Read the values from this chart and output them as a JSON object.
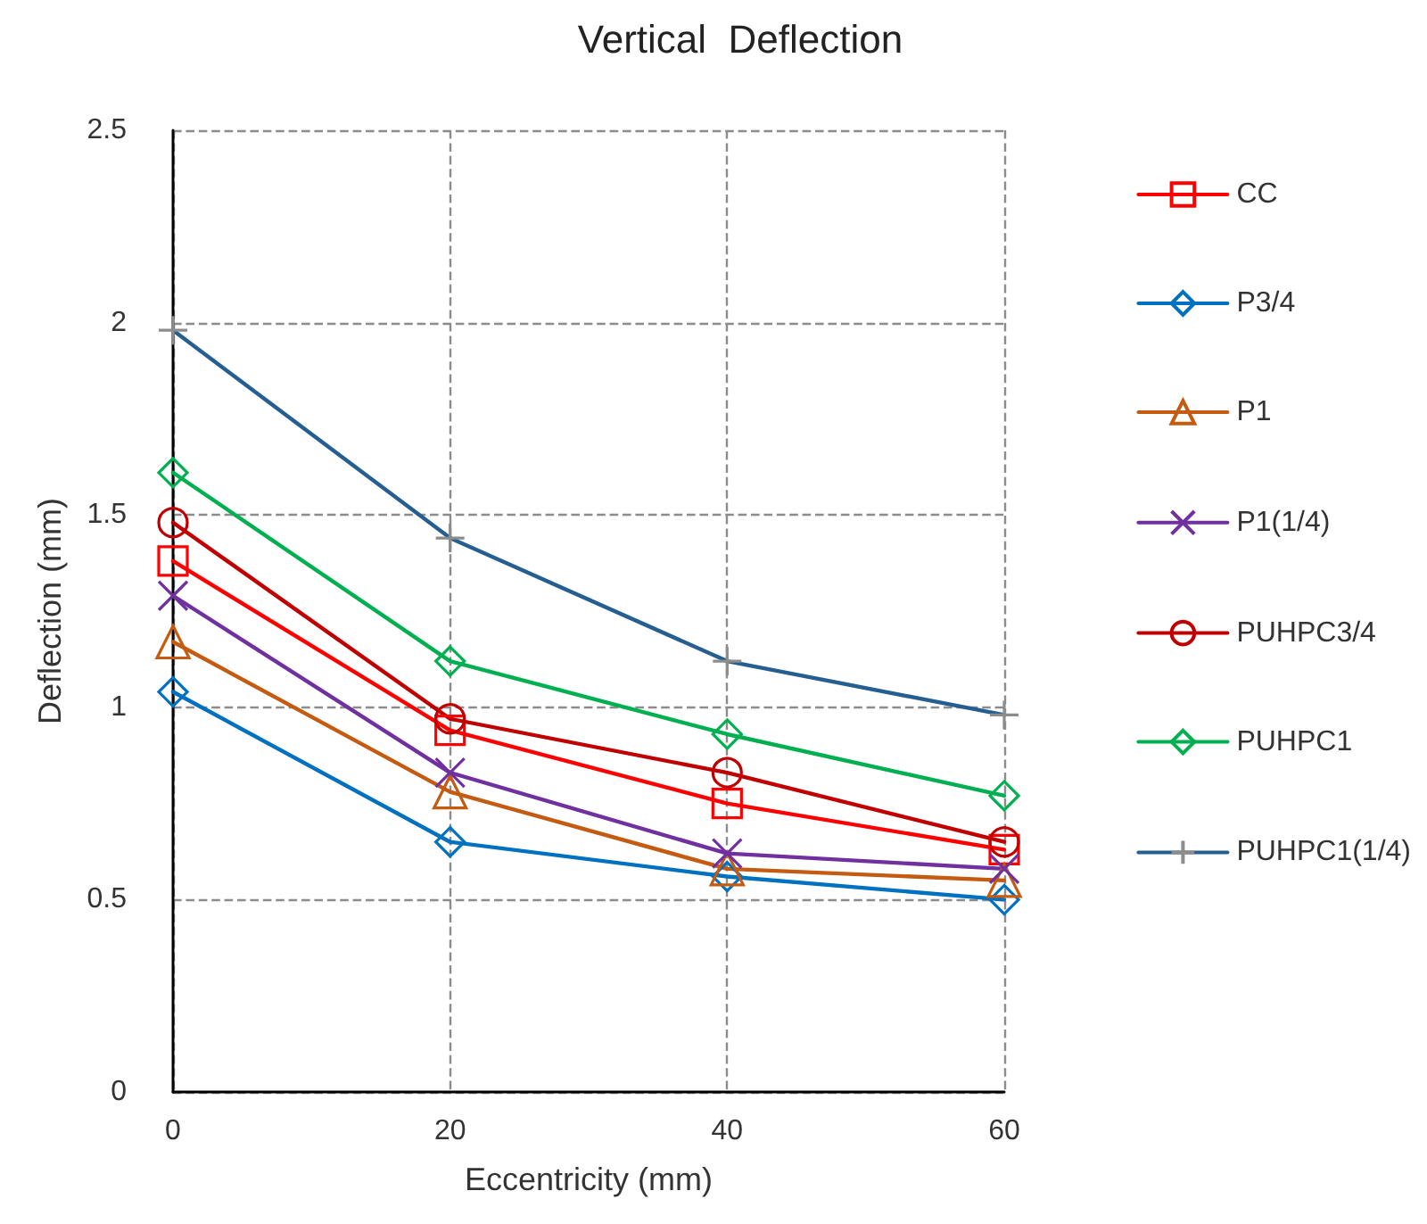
{
  "chart_data": {
    "type": "line",
    "title": "Vertical  Deflection",
    "xlabel": "Eccentricity (mm)",
    "ylabel": "Deflection (mm)",
    "x": [
      0,
      20,
      40,
      60
    ],
    "xlim": [
      0,
      60
    ],
    "xticks": [
      0,
      20,
      40,
      60
    ],
    "ylim": [
      0,
      2.5
    ],
    "yticks": [
      0,
      0.5,
      1,
      1.5,
      2,
      2.5
    ],
    "grid": true,
    "legend": "right",
    "line_style": "solid",
    "series": [
      {
        "name": "CC",
        "color": "#ff0000",
        "marker": "square",
        "values": [
          1.38,
          0.94,
          0.75,
          0.63
        ]
      },
      {
        "name": "P3/4",
        "color": "#0070c0",
        "marker": "diamond",
        "values": [
          1.04,
          0.65,
          0.56,
          0.5
        ]
      },
      {
        "name": "P1",
        "color": "#c55a11",
        "marker": "triangle",
        "values": [
          1.17,
          0.78,
          0.58,
          0.55
        ]
      },
      {
        "name": "P1(1/4)",
        "color": "#7030a0",
        "marker": "x",
        "values": [
          1.29,
          0.83,
          0.62,
          0.58
        ]
      },
      {
        "name": "PUHPC3/4",
        "color": "#c00000",
        "marker": "circle",
        "values": [
          1.48,
          0.97,
          0.83,
          0.65
        ]
      },
      {
        "name": "PUHPC1",
        "color": "#00b050",
        "marker": "diamond",
        "values": [
          1.61,
          1.12,
          0.93,
          0.77
        ]
      },
      {
        "name": "PUHPC1(1/4)",
        "color": "#255e91",
        "marker": "cross",
        "values": [
          1.98,
          1.44,
          1.12,
          0.98
        ]
      }
    ]
  }
}
